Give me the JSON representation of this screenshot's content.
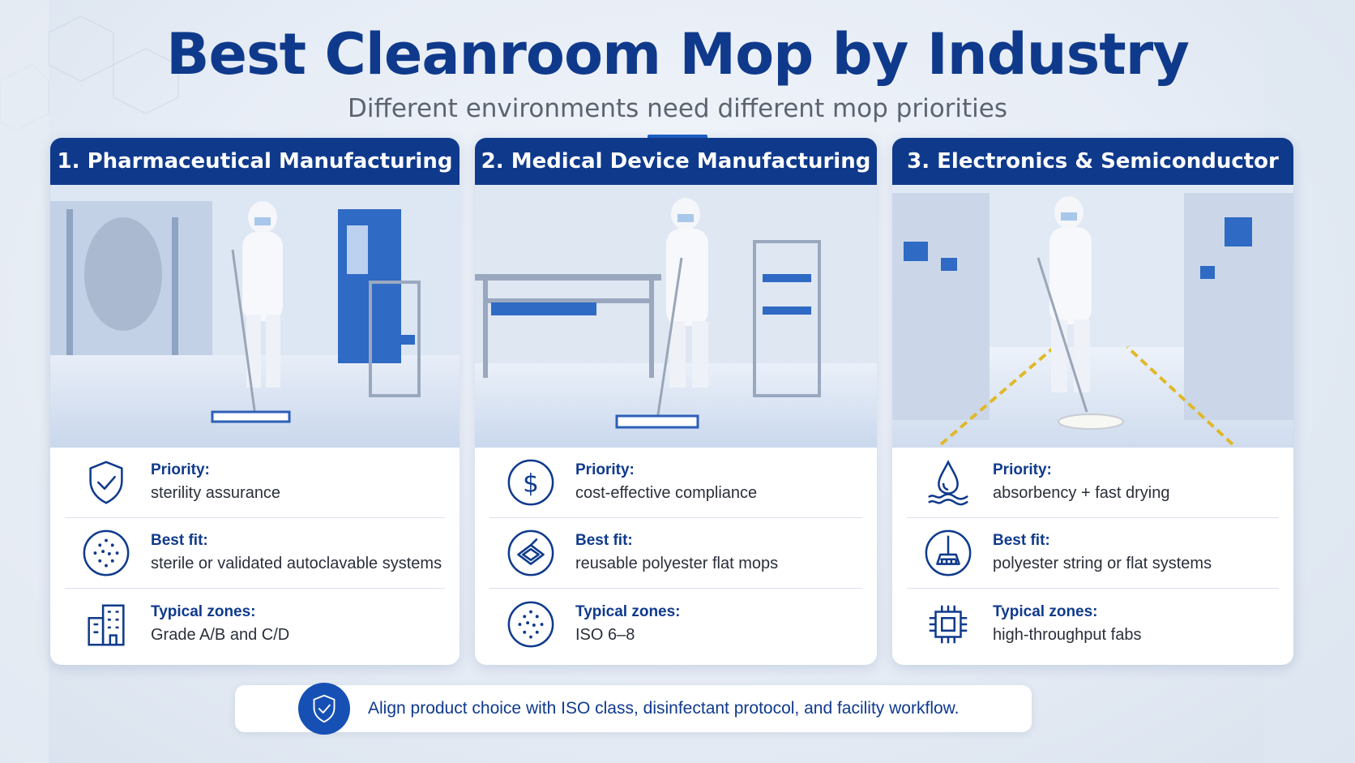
{
  "header": {
    "title": "Best Cleanroom Mop by Industry",
    "subtitle": "Different environments need different mop priorities"
  },
  "colors": {
    "navy": "#0f3a8c",
    "accent": "#1d5fc4",
    "background": "#e6ecf5"
  },
  "cards": [
    {
      "title": "1. Pharmaceutical Manufacturing",
      "photo": "cleanroom-worker-mopping-pharma-photo",
      "rows": [
        {
          "icon": "shield-check-icon",
          "label": "Priority:",
          "value": "sterility assurance"
        },
        {
          "icon": "particles-circle-icon",
          "label": "Best fit:",
          "value": "sterile or validated autoclavable systems"
        },
        {
          "icon": "building-icon",
          "label": "Typical zones:",
          "value": "Grade A/B and C/D"
        }
      ]
    },
    {
      "title": "2. Medical Device Manufacturing",
      "photo": "cleanroom-worker-mopping-medical-photo",
      "rows": [
        {
          "icon": "dollar-icon",
          "label": "Priority:",
          "value": "cost-effective compliance"
        },
        {
          "icon": "flat-mop-icon",
          "label": "Best fit:",
          "value": "reusable polyester flat mops"
        },
        {
          "icon": "particles-circle-icon",
          "label": "Typical zones:",
          "value": "ISO 6–8"
        }
      ]
    },
    {
      "title": "3. Electronics & Semiconductor",
      "photo": "cleanroom-worker-mopping-electronics-photo",
      "rows": [
        {
          "icon": "water-drop-icon",
          "label": "Priority:",
          "value": "absorbency + fast drying"
        },
        {
          "icon": "broom-icon",
          "label": "Best fit:",
          "value": "polyester string or flat systems"
        },
        {
          "icon": "chip-icon",
          "label": "Typical zones:",
          "value": "high-throughput fabs"
        }
      ]
    }
  ],
  "footer": {
    "icon": "shield-check-icon",
    "text": "Align product choice with ISO class, disinfectant protocol, and facility workflow."
  }
}
